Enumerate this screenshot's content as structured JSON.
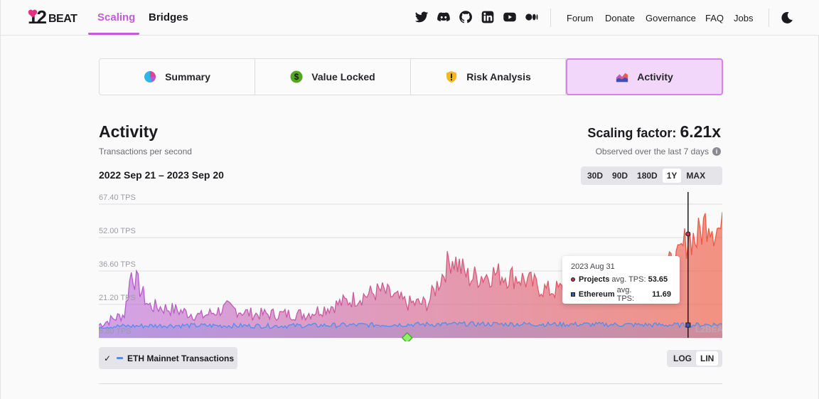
{
  "header": {
    "logo_number": "12",
    "logo_word": "BEAT",
    "nav_tabs": [
      {
        "label": "Scaling",
        "active": true
      },
      {
        "label": "Bridges",
        "active": false
      }
    ],
    "social_icons": [
      "twitter-icon",
      "discord-icon",
      "github-icon",
      "linkedin-icon",
      "youtube-icon",
      "medium-icon"
    ],
    "links": [
      "Forum",
      "Donate",
      "Governance",
      "FAQ",
      "Jobs"
    ],
    "theme_icon": "moon-icon"
  },
  "tabs": [
    {
      "label": "Summary",
      "icon": "pie-chart-icon",
      "active": false
    },
    {
      "label": "Value Locked",
      "icon": "dollar-coin-icon",
      "active": false
    },
    {
      "label": "Risk Analysis",
      "icon": "shield-warning-icon",
      "active": false
    },
    {
      "label": "Activity",
      "icon": "area-chart-icon",
      "active": true
    }
  ],
  "activity": {
    "title": "Activity",
    "subtitle": "Transactions per second",
    "scaling_label": "Scaling factor:",
    "scaling_value": "6.21x",
    "observed": "Observed over the last 7 days",
    "date_range": "2022 Sep 21 – 2023 Sep 20",
    "ranges": [
      {
        "label": "30D",
        "active": false
      },
      {
        "label": "90D",
        "active": false
      },
      {
        "label": "180D",
        "active": false
      },
      {
        "label": "1Y",
        "active": true
      },
      {
        "label": "MAX",
        "active": false
      }
    ],
    "eth_toggle_label": "ETH Mainnet Transactions",
    "scale": [
      {
        "label": "LOG",
        "active": false
      },
      {
        "label": "LIN",
        "active": true
      }
    ]
  },
  "colors": {
    "accent": "#c15ed6",
    "projects_start": "#b35bd6",
    "projects_end": "#ef5a3f",
    "ethereum_line": "#4d8ef0"
  },
  "chart_data": {
    "type": "area",
    "y_tick_labels": [
      "67.40 TPS",
      "52.00 TPS",
      "36.60 TPS",
      "21.20 TPS",
      "5.80 TPS"
    ],
    "ylim": [
      5.8,
      67.4
    ],
    "xlim": [
      "2022-09-21",
      "2023-09-20"
    ],
    "watermark": "L2BEAT",
    "series": [
      {
        "name": "Projects",
        "x": [
          "2022-09-21",
          "2022-10-06",
          "2022-10-10",
          "2022-10-20",
          "2022-11-05",
          "2022-11-20",
          "2022-12-05",
          "2022-12-20",
          "2023-01-05",
          "2023-01-20",
          "2023-02-05",
          "2023-02-20",
          "2023-03-05",
          "2023-03-20",
          "2023-04-01",
          "2023-04-15",
          "2023-04-25",
          "2023-05-10",
          "2023-05-25",
          "2023-06-10",
          "2023-06-25",
          "2023-07-10",
          "2023-07-25",
          "2023-08-10",
          "2023-08-25",
          "2023-08-31",
          "2023-09-05",
          "2023-09-12",
          "2023-09-15",
          "2023-09-20"
        ],
        "values": [
          12,
          17,
          37,
          21,
          19,
          16,
          20,
          17,
          17,
          17,
          21,
          25,
          28,
          22,
          22,
          44,
          34,
          36,
          34,
          28,
          29,
          32,
          36,
          35,
          42,
          53.65,
          52,
          63,
          58,
          56
        ]
      },
      {
        "name": "Ethereum",
        "x": [
          "2022-09-21",
          "2022-11-01",
          "2023-01-01",
          "2023-03-01",
          "2023-05-01",
          "2023-07-01",
          "2023-08-31",
          "2023-09-20"
        ],
        "values": [
          11,
          11.5,
          11.3,
          11.8,
          12.2,
          12,
          11.69,
          12
        ]
      }
    ],
    "markers": [
      {
        "label": "event-marker",
        "x": "2023-03-20"
      }
    ],
    "tooltip": {
      "date": "2023 Aug 31",
      "rows": [
        {
          "name": "Projects",
          "label": "avg. TPS:",
          "value": "53.65"
        },
        {
          "name": "Ethereum",
          "label": "avg. TPS:",
          "value": "11.69"
        }
      ]
    }
  }
}
